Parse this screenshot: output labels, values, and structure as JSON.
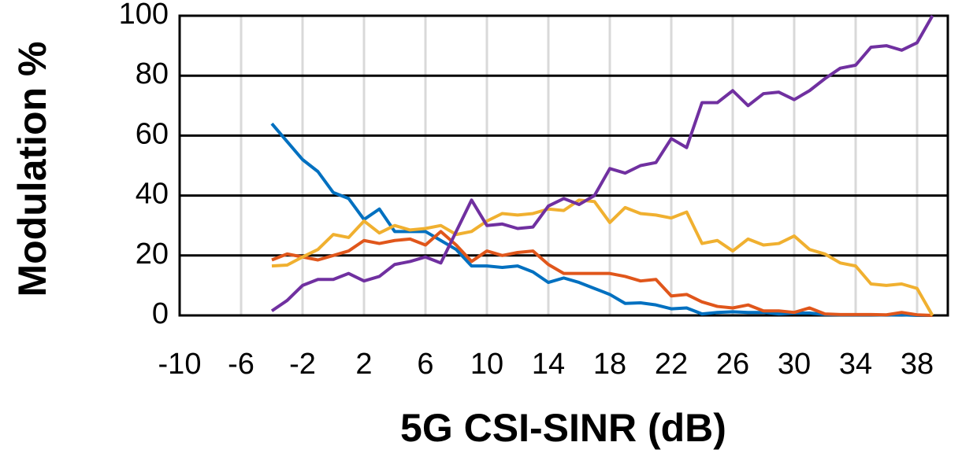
{
  "chart_data": {
    "type": "line",
    "x_label": "5G CSI-SINR (dB)",
    "y_label": "Modulation %",
    "x": [
      -4,
      -3,
      -2,
      -1,
      0,
      1,
      2,
      3,
      4,
      5,
      6,
      7,
      8,
      9,
      10,
      11,
      12,
      13,
      14,
      15,
      16,
      17,
      18,
      19,
      20,
      21,
      22,
      23,
      24,
      25,
      26,
      27,
      28,
      29,
      30,
      31,
      32,
      33,
      34,
      35,
      36,
      37,
      38,
      39
    ],
    "series": [
      {
        "color": "#0070c0",
        "values": [
          64,
          58,
          52,
          48,
          41,
          39,
          32,
          35.5,
          28,
          28,
          28,
          25,
          22,
          16.5,
          16.5,
          16,
          16.5,
          14.5,
          11,
          12.5,
          11,
          9,
          7,
          4,
          4.2,
          3.5,
          2.2,
          2.5,
          0.5,
          1,
          1.2,
          1,
          1,
          0.5,
          0.8,
          0.8,
          0.3,
          0.2,
          0.2,
          0.2,
          0.1,
          0.2,
          0,
          0
        ]
      },
      {
        "color": "#e0561b",
        "values": [
          18.5,
          20.5,
          19.5,
          18.5,
          20,
          21.5,
          25,
          24,
          25,
          25.5,
          23.5,
          28,
          23.5,
          18,
          21.5,
          20,
          21,
          21.5,
          17,
          14,
          14,
          14,
          14,
          13,
          11.5,
          12,
          6.5,
          7,
          4.5,
          3,
          2.5,
          3.5,
          1.5,
          1.5,
          1,
          2.5,
          0.5,
          0.3,
          0.3,
          0.3,
          0.2,
          1,
          0.2,
          0
        ]
      },
      {
        "color": "#f0b030",
        "values": [
          16.5,
          16.8,
          19.5,
          22,
          27,
          26,
          31.5,
          27.5,
          30,
          28.5,
          29,
          30,
          27,
          28,
          31.5,
          34,
          33.5,
          34,
          35.5,
          35,
          38.5,
          38,
          31,
          36,
          34,
          33.5,
          32.5,
          34.5,
          24,
          25,
          21.5,
          25.5,
          23.5,
          24,
          26.5,
          22,
          20.5,
          17.5,
          16.5,
          10.5,
          10,
          10.5,
          9,
          0
        ]
      },
      {
        "color": "#7030a0",
        "values": [
          1.5,
          5,
          10,
          12,
          12,
          14,
          11.5,
          13,
          17,
          18,
          19.5,
          17.5,
          28,
          38.5,
          30,
          30.5,
          29,
          29.5,
          36.5,
          39,
          37,
          40,
          49,
          47.5,
          50,
          51,
          59,
          56,
          71,
          71,
          75,
          70,
          74,
          74.5,
          72,
          75,
          79,
          82.5,
          83.5,
          89.5,
          90,
          88.5,
          91,
          100
        ]
      }
    ],
    "xlim": [
      -10,
      40
    ],
    "xticks": [
      -10,
      -6,
      -2,
      2,
      6,
      10,
      14,
      18,
      22,
      26,
      30,
      34,
      38
    ],
    "ylim": [
      0,
      100
    ],
    "yticks": [
      0,
      20,
      40,
      60,
      80,
      100
    ],
    "grid": true
  }
}
